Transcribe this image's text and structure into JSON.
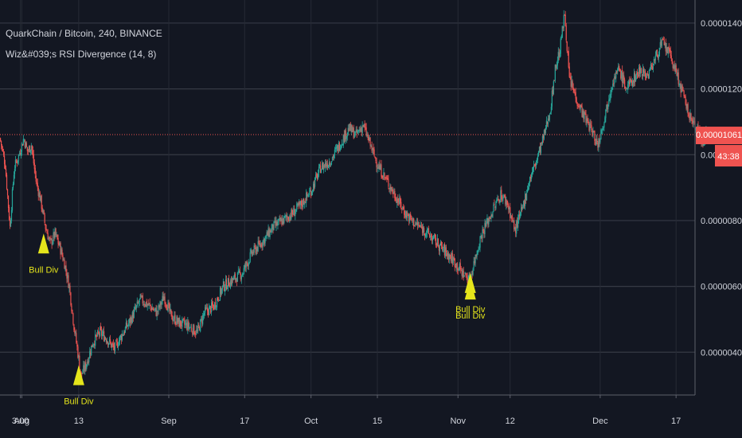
{
  "legend": {
    "title": "QuarkChain / Bitcoin, 240, BINANCE",
    "indicator": "Wiz&#039;s RSI Divergence (14, 8)"
  },
  "colors": {
    "background": "#131722",
    "grid": "#363a45",
    "up_candle": "#26a69a",
    "down_candle": "#ef5350",
    "price_line": "#ef5350",
    "signal": "#e5e51b",
    "axis_text": "#d1d4dc"
  },
  "chart_data": {
    "type": "candlestick",
    "title": "QuarkChain / Bitcoin, 240, BINANCE",
    "indicator": "Wiz&#039;s RSI Divergence (14, 8)",
    "ylim": [
      2.7e-06,
      1.47e-05
    ],
    "y_ticks": [
      "0.00001400",
      "0.00001200",
      "0.00001000",
      "0.00000800",
      "0.00000600",
      "0.00000400"
    ],
    "y_tick_values": [
      1.4e-05,
      1.2e-05,
      1e-05,
      8e-06,
      6e-06,
      4e-06
    ],
    "x_ticks": [
      {
        "label": "3:00",
        "day": -0.3
      },
      {
        "label": "Aug",
        "day": 0
      },
      {
        "label": "13",
        "day": 12
      },
      {
        "label": "Sep",
        "day": 31
      },
      {
        "label": "17",
        "day": 47
      },
      {
        "label": "Oct",
        "day": 61
      },
      {
        "label": "15",
        "day": 75
      },
      {
        "label": "Nov",
        "day": 92
      },
      {
        "label": "12",
        "day": 103
      },
      {
        "label": "Dec",
        "day": 122
      },
      {
        "label": "17",
        "day": 138
      }
    ],
    "x_range_days": [
      -4.6,
      142
    ],
    "price_path": [
      [
        -4.6,
        1.05e-05
      ],
      [
        -3.5,
        9.7e-06
      ],
      [
        -2.5,
        7.8e-06
      ],
      [
        -1.6,
        9.6e-06
      ],
      [
        -0.6,
        1e-05
      ],
      [
        0.4,
        1.05e-05
      ],
      [
        1.2,
        1.01e-05
      ],
      [
        2.0,
        1.03e-05
      ],
      [
        3.0,
        9.2e-06
      ],
      [
        4.0,
        8.6e-06
      ],
      [
        5.0,
        7.8e-06
      ],
      [
        6.0,
        7.3e-06
      ],
      [
        7.0,
        7.6e-06
      ],
      [
        8.0,
        7.2e-06
      ],
      [
        9.0,
        6.7e-06
      ],
      [
        10.0,
        6e-06
      ],
      [
        11.0,
        4.8e-06
      ],
      [
        12.5,
        3.3e-06
      ],
      [
        13.5,
        3.6e-06
      ],
      [
        15.0,
        4.3e-06
      ],
      [
        16.5,
        4.6e-06
      ],
      [
        18.0,
        4.4e-06
      ],
      [
        19.5,
        4.1e-06
      ],
      [
        21.0,
        4.5e-06
      ],
      [
        23.0,
        5e-06
      ],
      [
        25.0,
        5.6e-06
      ],
      [
        27.0,
        5.4e-06
      ],
      [
        28.5,
        5.2e-06
      ],
      [
        30.0,
        5.7e-06
      ],
      [
        31.5,
        5.1e-06
      ],
      [
        33.0,
        4.9e-06
      ],
      [
        35.0,
        4.8e-06
      ],
      [
        37.0,
        4.6e-06
      ],
      [
        38.5,
        5.2e-06
      ],
      [
        40.5,
        5.4e-06
      ],
      [
        42.5,
        6e-06
      ],
      [
        44.5,
        6.2e-06
      ],
      [
        46.5,
        6.4e-06
      ],
      [
        48.5,
        7e-06
      ],
      [
        51.0,
        7.4e-06
      ],
      [
        53.0,
        7.8e-06
      ],
      [
        55.0,
        8e-06
      ],
      [
        57.0,
        8.2e-06
      ],
      [
        59.0,
        8.5e-06
      ],
      [
        61.0,
        8.9e-06
      ],
      [
        63.0,
        9.6e-06
      ],
      [
        65.0,
        9.8e-06
      ],
      [
        67.0,
        1.03e-05
      ],
      [
        69.0,
        1.08e-05
      ],
      [
        70.5,
        1.06e-05
      ],
      [
        72.0,
        1.09e-05
      ],
      [
        73.5,
        1.03e-05
      ],
      [
        75.0,
        9.7e-06
      ],
      [
        77.0,
        9.2e-06
      ],
      [
        79.0,
        8.7e-06
      ],
      [
        81.0,
        8.2e-06
      ],
      [
        83.0,
        7.9e-06
      ],
      [
        85.0,
        7.7e-06
      ],
      [
        87.0,
        7.4e-06
      ],
      [
        89.0,
        7.1e-06
      ],
      [
        91.0,
        6.8e-06
      ],
      [
        93.0,
        6.4e-06
      ],
      [
        94.5,
        6.2e-06
      ],
      [
        95.5,
        6.8e-06
      ],
      [
        97.0,
        7.6e-06
      ],
      [
        99.0,
        8.2e-06
      ],
      [
        101.0,
        8.8e-06
      ],
      [
        102.5,
        8.5e-06
      ],
      [
        104.0,
        7.7e-06
      ],
      [
        105.5,
        8.3e-06
      ],
      [
        107.0,
        9.2e-06
      ],
      [
        108.5,
        9.8e-06
      ],
      [
        110.0,
        1.05e-05
      ],
      [
        111.5,
        1.14e-05
      ],
      [
        112.5,
        1.26e-05
      ],
      [
        113.5,
        1.32e-05
      ],
      [
        114.5,
        1.43e-05
      ],
      [
        115.5,
        1.23e-05
      ],
      [
        117.0,
        1.17e-05
      ],
      [
        118.5,
        1.12e-05
      ],
      [
        120.0,
        1.08e-05
      ],
      [
        121.5,
        1.03e-05
      ],
      [
        123.0,
        1.12e-05
      ],
      [
        124.5,
        1.22e-05
      ],
      [
        126.0,
        1.26e-05
      ],
      [
        127.5,
        1.2e-05
      ],
      [
        129.0,
        1.23e-05
      ],
      [
        130.5,
        1.26e-05
      ],
      [
        132.0,
        1.24e-05
      ],
      [
        133.5,
        1.29e-05
      ],
      [
        135.0,
        1.34e-05
      ],
      [
        136.5,
        1.31e-05
      ],
      [
        138.0,
        1.25e-05
      ],
      [
        139.5,
        1.18e-05
      ],
      [
        141.0,
        1.11e-05
      ],
      [
        142.5,
        1.08e-05
      ],
      [
        143.5,
        1.04e-05
      ],
      [
        144.5,
        1.07e-05
      ]
    ],
    "last_price": {
      "value": 1.061e-05,
      "label": "0.00001061",
      "countdown": "43:38"
    },
    "signals": [
      {
        "label": "Bull Div",
        "day": 4.6,
        "price": 7e-06
      },
      {
        "label": "Bull Div",
        "day": 12.0,
        "price": 3e-06
      },
      {
        "label": "Bull Div",
        "day": 94.6,
        "price": 5.6e-06
      },
      {
        "label": "Bull Div",
        "day": 94.6,
        "price": 5.8e-06
      }
    ]
  }
}
